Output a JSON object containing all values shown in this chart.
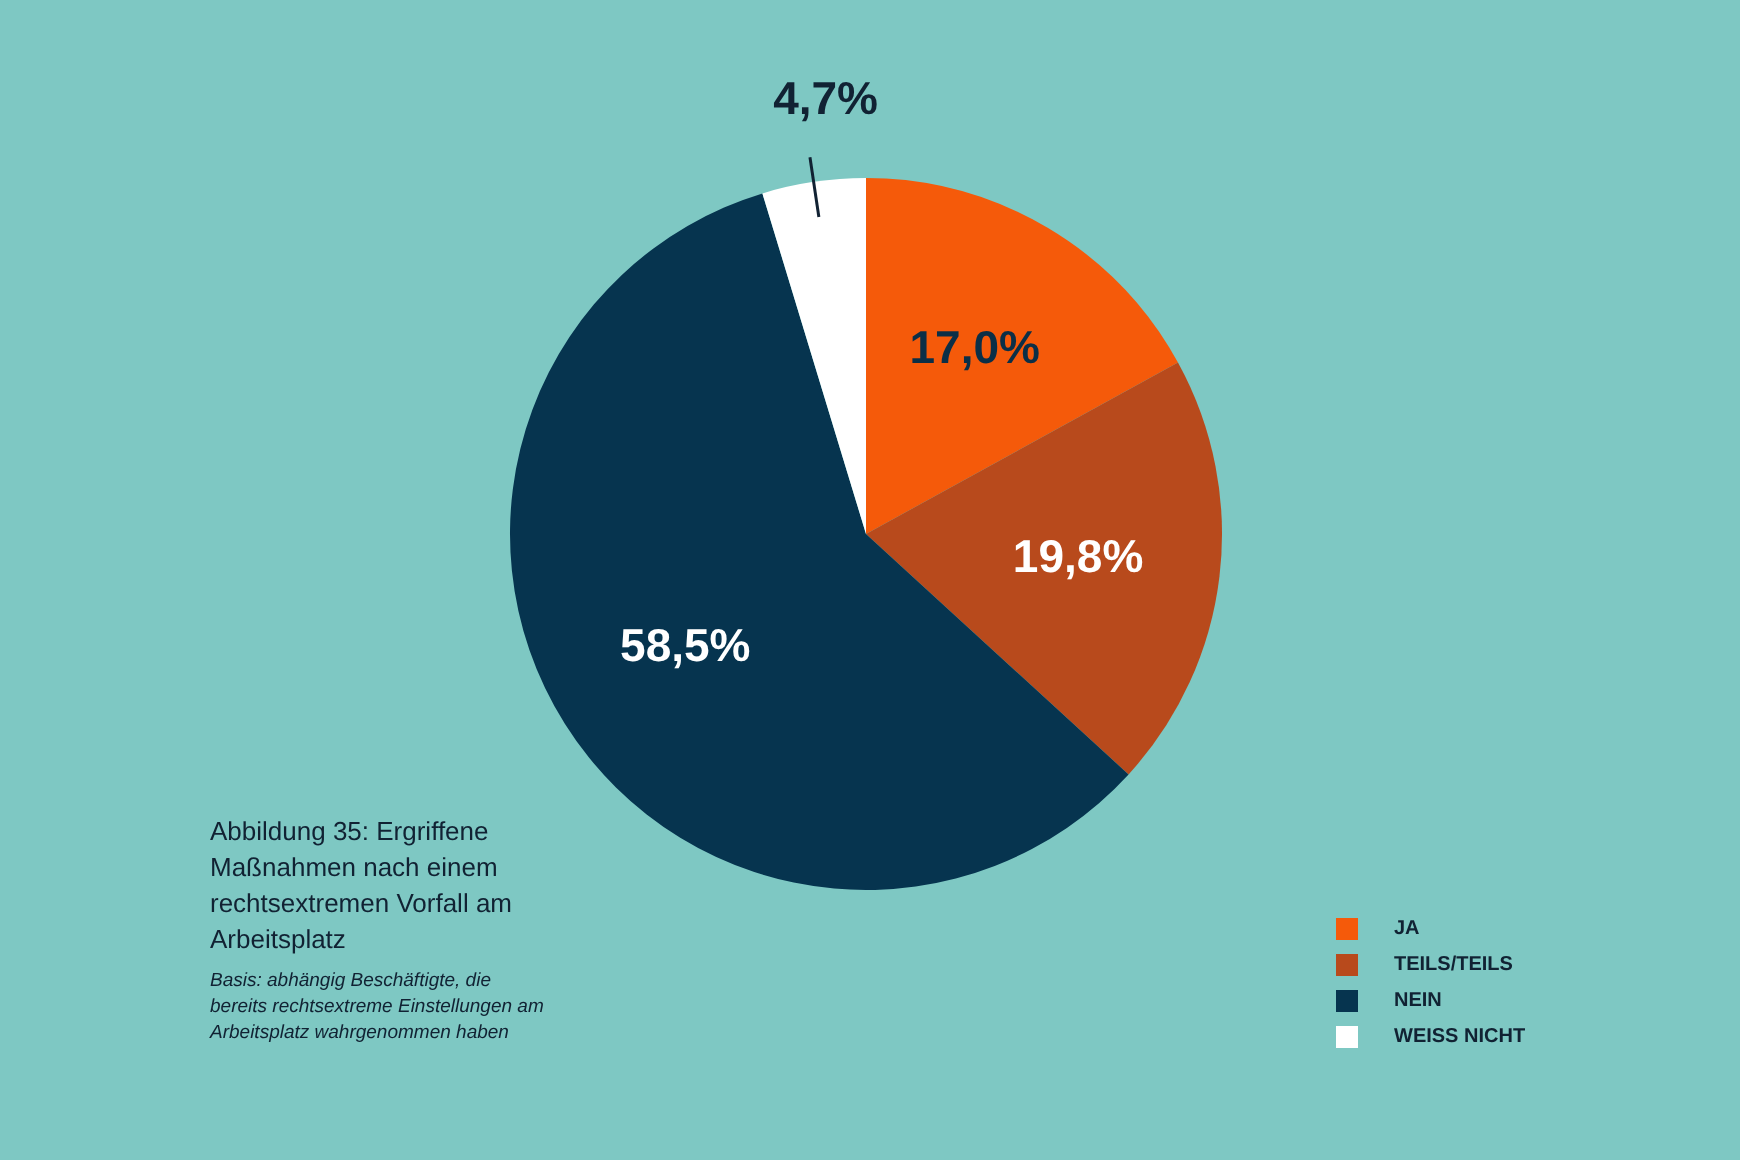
{
  "chart_data": {
    "type": "pie",
    "title": "Abbildung 35: Ergriffene Maßnahmen nach einem rechtsextremen Vorfall am Arbeitsplatz",
    "subtitle": "Basis: abhängig Beschäftigte, die bereits rechtsextreme Einstellungen am Arbeitsplatz wahrgenommen haben",
    "categories": [
      "JA",
      "TEILS/TEILS",
      "NEIN",
      "WEISS NICHT"
    ],
    "values": [
      17.0,
      19.8,
      58.5,
      4.7
    ],
    "value_labels": [
      "17,0%",
      "19,8%",
      "58,5%",
      "4,7%"
    ],
    "colors": [
      "#f55a0a",
      "#b84a1c",
      "#06344f",
      "#ffffff"
    ],
    "legend": "bottom right"
  }
}
